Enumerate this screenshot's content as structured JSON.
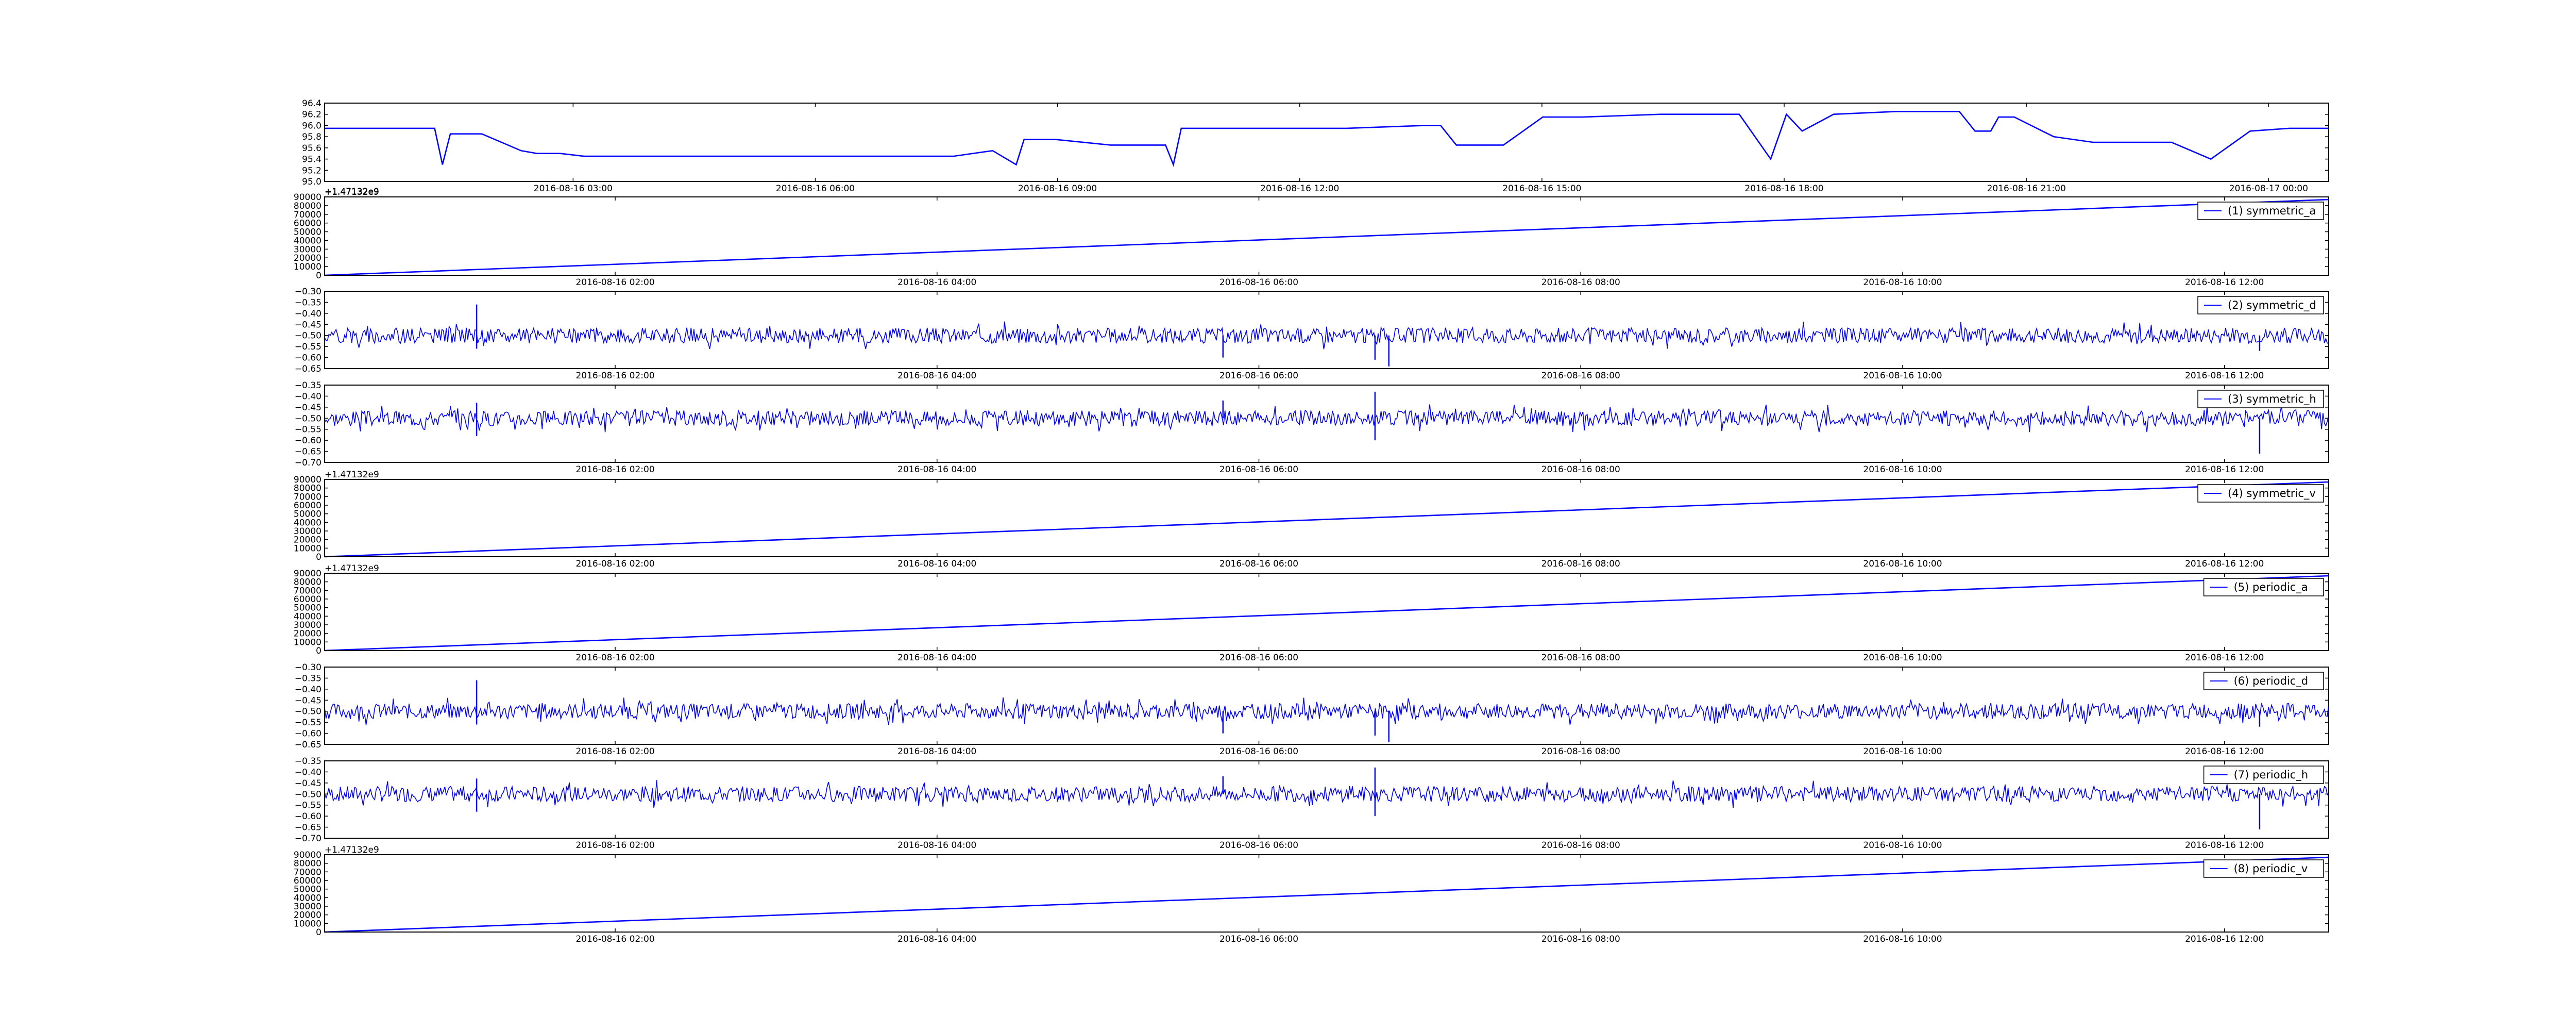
{
  "figure": {
    "background": "#ffffff",
    "line_color": "#0000ff",
    "axis_color": "#000000"
  },
  "chart_data": [
    {
      "type": "line",
      "x_ticks": [
        "2016-08-16 03:00",
        "2016-08-16 06:00",
        "2016-08-16 09:00",
        "2016-08-16 12:00",
        "2016-08-16 15:00",
        "2016-08-16 18:00",
        "2016-08-16 21:00",
        "2016-08-17 00:00"
      ],
      "y_ticks": [
        "95.0",
        "95.2",
        "95.4",
        "95.6",
        "95.8",
        "96.0",
        "96.2",
        "96.4"
      ],
      "ylim": [
        95.0,
        96.4
      ],
      "xlim": [
        0,
        25.5
      ],
      "series": [
        {
          "x": [
            0,
            0.5,
            1,
            1.4,
            1.5,
            1.6,
            1.8,
            2,
            2.5,
            2.7,
            3,
            3.3,
            4,
            5,
            6,
            7,
            8,
            8.5,
            8.8,
            8.9,
            9,
            9.3,
            10,
            10.7,
            10.8,
            10.9,
            11.3,
            12,
            12.5,
            13,
            14,
            14.2,
            14.4,
            14.6,
            15,
            15.5,
            16,
            17,
            18,
            18.4,
            18.6,
            18.8,
            19.2,
            20,
            20.8,
            21,
            21.2,
            21.3,
            21.5,
            22,
            22.5,
            23,
            23.5,
            24,
            24.5,
            25,
            25.5
          ],
          "y": [
            95.95,
            95.95,
            95.95,
            95.95,
            95.3,
            95.85,
            95.85,
            95.85,
            95.55,
            95.5,
            95.5,
            95.45,
            95.45,
            95.45,
            95.45,
            95.45,
            95.45,
            95.55,
            95.3,
            95.75,
            95.75,
            95.75,
            95.65,
            95.65,
            95.3,
            95.95,
            95.95,
            95.95,
            95.95,
            95.95,
            96.0,
            96.0,
            95.65,
            95.65,
            95.65,
            96.15,
            96.15,
            96.2,
            96.2,
            95.4,
            96.2,
            95.9,
            96.2,
            96.25,
            96.25,
            95.9,
            95.9,
            96.15,
            96.15,
            95.8,
            95.7,
            95.7,
            95.7,
            95.4,
            95.9,
            95.95,
            95.95
          ]
        }
      ]
    },
    {
      "type": "line",
      "x_ticks": [
        "2016-08-16 02:00",
        "2016-08-16 04:00",
        "2016-08-16 06:00",
        "2016-08-16 08:00",
        "2016-08-16 10:00",
        "2016-08-16 12:00"
      ],
      "y_ticks": [
        "0",
        "10000",
        "20000",
        "30000",
        "40000",
        "50000",
        "60000",
        "70000",
        "80000",
        "90000"
      ],
      "ylim": [
        0,
        90000
      ],
      "xlim": [
        0,
        14.5
      ],
      "offset_label": "+1.47132e9",
      "legend": "(1) symmetric_a",
      "series": [
        {
          "name": "(1) symmetric_a",
          "x": [
            0,
            14.5
          ],
          "y": [
            0,
            87000
          ]
        }
      ]
    },
    {
      "type": "line",
      "x_ticks": [
        "2016-08-16 02:00",
        "2016-08-16 04:00",
        "2016-08-16 06:00",
        "2016-08-16 08:00",
        "2016-08-16 10:00",
        "2016-08-16 12:00"
      ],
      "y_ticks": [
        "−0.65",
        "−0.60",
        "−0.55",
        "−0.50",
        "−0.45",
        "−0.40",
        "−0.35",
        "−0.30"
      ],
      "ylim": [
        -0.65,
        -0.3
      ],
      "xlim": [
        0,
        14.5
      ],
      "legend": "(2) symmetric_d",
      "noise": {
        "base": -0.5,
        "amp": 0.035,
        "seed": 2,
        "spikes": [
          [
            1.1,
            -0.36
          ],
          [
            1.1,
            -0.56
          ],
          [
            6.5,
            -0.6
          ],
          [
            7.6,
            -0.61
          ],
          [
            7.7,
            -0.64
          ],
          [
            14.0,
            -0.57
          ]
        ]
      },
      "series": [
        {
          "name": "(2) symmetric_d"
        }
      ]
    },
    {
      "type": "line",
      "x_ticks": [
        "2016-08-16 02:00",
        "2016-08-16 04:00",
        "2016-08-16 06:00",
        "2016-08-16 08:00",
        "2016-08-16 10:00",
        "2016-08-16 12:00"
      ],
      "y_ticks": [
        "−0.70",
        "−0.65",
        "−0.60",
        "−0.55",
        "−0.50",
        "−0.45",
        "−0.40",
        "−0.35"
      ],
      "ylim": [
        -0.7,
        -0.35
      ],
      "xlim": [
        0,
        14.5
      ],
      "legend": "(3) symmetric_h",
      "noise": {
        "base": -0.5,
        "amp": 0.035,
        "seed": 3,
        "spikes": [
          [
            1.1,
            -0.43
          ],
          [
            1.1,
            -0.58
          ],
          [
            6.5,
            -0.42
          ],
          [
            7.6,
            -0.38
          ],
          [
            7.6,
            -0.6
          ],
          [
            14.0,
            -0.66
          ]
        ]
      },
      "series": [
        {
          "name": "(3) symmetric_h"
        }
      ]
    },
    {
      "type": "line",
      "x_ticks": [
        "2016-08-16 02:00",
        "2016-08-16 04:00",
        "2016-08-16 06:00",
        "2016-08-16 08:00",
        "2016-08-16 10:00",
        "2016-08-16 12:00"
      ],
      "y_ticks": [
        "0",
        "10000",
        "20000",
        "30000",
        "40000",
        "50000",
        "60000",
        "70000",
        "80000",
        "90000"
      ],
      "ylim": [
        0,
        90000
      ],
      "xlim": [
        0,
        14.5
      ],
      "offset_label": "+1.47132e9",
      "legend": "(4) symmetric_v",
      "series": [
        {
          "name": "(4) symmetric_v",
          "x": [
            0,
            14.5
          ],
          "y": [
            0,
            87000
          ]
        }
      ]
    },
    {
      "type": "line",
      "x_ticks": [
        "2016-08-16 02:00",
        "2016-08-16 04:00",
        "2016-08-16 06:00",
        "2016-08-16 08:00",
        "2016-08-16 10:00",
        "2016-08-16 12:00"
      ],
      "y_ticks": [
        "0",
        "10000",
        "20000",
        "30000",
        "40000",
        "50000",
        "60000",
        "70000",
        "80000",
        "90000"
      ],
      "ylim": [
        0,
        90000
      ],
      "xlim": [
        0,
        14.5
      ],
      "offset_label": "+1.47132e9",
      "legend": "(5) periodic_a",
      "series": [
        {
          "name": "(5) periodic_a",
          "x": [
            0,
            14.5
          ],
          "y": [
            0,
            87000
          ]
        }
      ]
    },
    {
      "type": "line",
      "x_ticks": [
        "2016-08-16 02:00",
        "2016-08-16 04:00",
        "2016-08-16 06:00",
        "2016-08-16 08:00",
        "2016-08-16 10:00",
        "2016-08-16 12:00"
      ],
      "y_ticks": [
        "−0.65",
        "−0.60",
        "−0.55",
        "−0.50",
        "−0.45",
        "−0.40",
        "−0.35",
        "−0.30"
      ],
      "ylim": [
        -0.65,
        -0.3
      ],
      "xlim": [
        0,
        14.5
      ],
      "legend": "(6) periodic_d",
      "noise": {
        "base": -0.5,
        "amp": 0.035,
        "seed": 6,
        "spikes": [
          [
            1.1,
            -0.36
          ],
          [
            1.1,
            -0.56
          ],
          [
            6.5,
            -0.6
          ],
          [
            7.6,
            -0.61
          ],
          [
            7.7,
            -0.64
          ],
          [
            14.0,
            -0.57
          ]
        ]
      },
      "series": [
        {
          "name": "(6) periodic_d"
        }
      ]
    },
    {
      "type": "line",
      "x_ticks": [
        "2016-08-16 02:00",
        "2016-08-16 04:00",
        "2016-08-16 06:00",
        "2016-08-16 08:00",
        "2016-08-16 10:00",
        "2016-08-16 12:00"
      ],
      "y_ticks": [
        "−0.70",
        "−0.65",
        "−0.60",
        "−0.55",
        "−0.50",
        "−0.45",
        "−0.40",
        "−0.35"
      ],
      "ylim": [
        -0.7,
        -0.35
      ],
      "xlim": [
        0,
        14.5
      ],
      "legend": "(7) periodic_h",
      "noise": {
        "base": -0.5,
        "amp": 0.035,
        "seed": 7,
        "spikes": [
          [
            1.1,
            -0.43
          ],
          [
            1.1,
            -0.58
          ],
          [
            6.5,
            -0.42
          ],
          [
            7.6,
            -0.38
          ],
          [
            7.6,
            -0.6
          ],
          [
            14.0,
            -0.66
          ]
        ]
      },
      "series": [
        {
          "name": "(7) periodic_h"
        }
      ]
    },
    {
      "type": "line",
      "x_ticks": [
        "2016-08-16 02:00",
        "2016-08-16 04:00",
        "2016-08-16 06:00",
        "2016-08-16 08:00",
        "2016-08-16 10:00",
        "2016-08-16 12:00"
      ],
      "y_ticks": [
        "0",
        "10000",
        "20000",
        "30000",
        "40000",
        "50000",
        "60000",
        "70000",
        "80000",
        "90000"
      ],
      "ylim": [
        0,
        90000
      ],
      "xlim": [
        0,
        14.5
      ],
      "offset_label": "+1.47132e9",
      "legend": "(8) periodic_v",
      "series": [
        {
          "name": "(8) periodic_v",
          "x": [
            0,
            14.5
          ],
          "y": [
            0,
            87000
          ]
        }
      ]
    }
  ]
}
